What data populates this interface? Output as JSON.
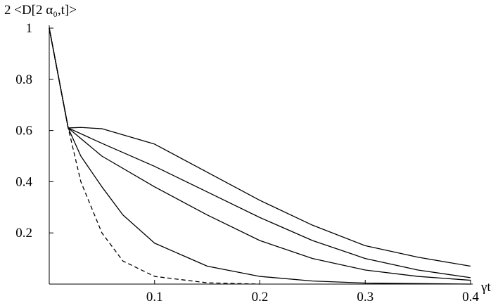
{
  "chart_data": {
    "type": "line",
    "ylabel": "2 <D[2 α₀,t]>",
    "xlabel": "γt",
    "xlim": [
      0,
      0.402
    ],
    "ylim": [
      0,
      1
    ],
    "xticks": [
      0.1,
      0.2,
      0.3,
      0.4
    ],
    "yticks": [
      0.2,
      0.4,
      0.6,
      0.8,
      1
    ],
    "grid": false,
    "series": [
      {
        "color": "#000000",
        "dashed": false,
        "x": [
          0,
          0.018,
          0.03,
          0.05,
          0.1,
          0.15,
          0.2,
          0.25,
          0.3,
          0.35,
          0.4
        ],
        "values": [
          1,
          0.61,
          0.612,
          0.607,
          0.547,
          0.437,
          0.327,
          0.23,
          0.15,
          0.105,
          0.07
        ]
      },
      {
        "color": "#000000",
        "dashed": false,
        "x": [
          0,
          0.018,
          0.05,
          0.1,
          0.15,
          0.2,
          0.25,
          0.3,
          0.35,
          0.4
        ],
        "values": [
          1,
          0.61,
          0.55,
          0.46,
          0.36,
          0.26,
          0.17,
          0.1,
          0.055,
          0.025
        ]
      },
      {
        "color": "#000000",
        "dashed": false,
        "x": [
          0,
          0.018,
          0.05,
          0.1,
          0.15,
          0.2,
          0.25,
          0.3,
          0.35,
          0.4
        ],
        "values": [
          1,
          0.61,
          0.5,
          0.38,
          0.27,
          0.17,
          0.1,
          0.055,
          0.03,
          0.015
        ]
      },
      {
        "color": "#000000",
        "dashed": false,
        "x": [
          0,
          0.018,
          0.03,
          0.05,
          0.07,
          0.1,
          0.15,
          0.2,
          0.25,
          0.3,
          0.4
        ],
        "values": [
          1,
          0.61,
          0.5,
          0.38,
          0.27,
          0.16,
          0.07,
          0.03,
          0.012,
          0.004,
          0
        ]
      },
      {
        "color": "#000000",
        "dashed": true,
        "x": [
          0,
          0.018,
          0.03,
          0.05,
          0.07,
          0.1,
          0.15,
          0.2
        ],
        "values": [
          1,
          0.61,
          0.4,
          0.2,
          0.09,
          0.03,
          0.005,
          0
        ]
      }
    ]
  }
}
